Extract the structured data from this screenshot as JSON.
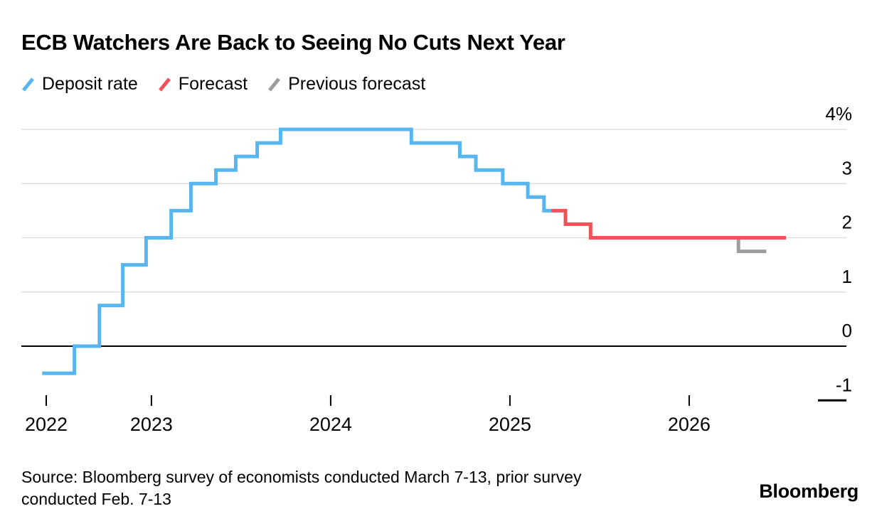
{
  "chart_data": {
    "type": "line",
    "subtype": "step",
    "title": "ECB Watchers Are Back to Seeing No Cuts Next Year",
    "legend_position": "top-left",
    "grid": "horizontal",
    "x_domain": [
      2022.413,
      2026.54
    ],
    "y_domain": [
      -1,
      4
    ],
    "y_unit": "%",
    "x_ticks": [
      {
        "label": "2022",
        "year": 2022
      },
      {
        "label": "2023",
        "year": 2023
      },
      {
        "label": "2024",
        "year": 2024
      },
      {
        "label": "2025",
        "year": 2025
      },
      {
        "label": "2026",
        "year": 2026
      }
    ],
    "y_ticks": [
      {
        "label": "4%",
        "value": 4,
        "style": "grid"
      },
      {
        "label": "3",
        "value": 3,
        "style": "grid"
      },
      {
        "label": "2",
        "value": 2,
        "style": "grid"
      },
      {
        "label": "1",
        "value": 1,
        "style": "grid"
      },
      {
        "label": "0",
        "value": 0,
        "style": "baseline"
      },
      {
        "label": "-1",
        "value": -1,
        "style": "cap"
      }
    ],
    "series": [
      {
        "name": "Deposit rate",
        "color": "#57B6F0",
        "points": [
          [
            2022.39,
            -0.5
          ],
          [
            2022.57,
            0.0
          ],
          [
            2022.71,
            0.75
          ],
          [
            2022.84,
            1.5
          ],
          [
            2022.97,
            2.0
          ],
          [
            2023.11,
            2.5
          ],
          [
            2023.22,
            3.0
          ],
          [
            2023.36,
            3.25
          ],
          [
            2023.47,
            3.5
          ],
          [
            2023.59,
            3.75
          ],
          [
            2023.72,
            4.0
          ],
          [
            2024.45,
            3.75
          ],
          [
            2024.72,
            3.5
          ],
          [
            2024.81,
            3.25
          ],
          [
            2024.96,
            3.0
          ],
          [
            2025.1,
            2.75
          ],
          [
            2025.19,
            2.5
          ],
          [
            2025.23,
            2.5
          ]
        ]
      },
      {
        "name": "Forecast",
        "color": "#F0525A",
        "points": [
          [
            2025.23,
            2.5
          ],
          [
            2025.31,
            2.25
          ],
          [
            2025.45,
            2.0
          ],
          [
            2026.54,
            2.0
          ]
        ]
      },
      {
        "name": "Previous forecast",
        "color": "#9D9D9D",
        "points": [
          [
            2026.24,
            2.0
          ],
          [
            2026.275,
            1.75
          ],
          [
            2026.43,
            1.75
          ]
        ]
      }
    ]
  },
  "source": {
    "line1": "Source: Bloomberg survey of economists conducted March 7-13, prior survey",
    "line2": "conducted Feb. 7-13"
  },
  "branding": {
    "logo_text": "Bloomberg"
  }
}
